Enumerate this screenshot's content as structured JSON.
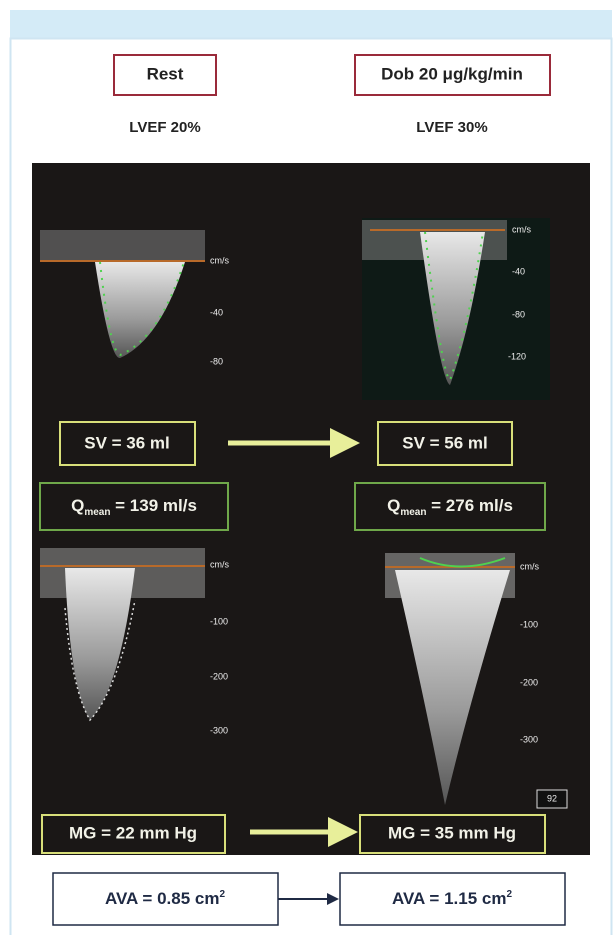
{
  "header": {
    "rest": "Rest",
    "dob": "Dob 20 μg/kg/min",
    "lvef_rest": "LVEF 20%",
    "lvef_dob": "LVEF 30%"
  },
  "panels": {
    "top_left_axis": [
      "cm/s",
      "-40",
      "-80"
    ],
    "top_right_axis": [
      "cm/s",
      "-40",
      "-80",
      "-120"
    ],
    "bottom_left_axis": [
      "cm/s",
      "-100",
      "-200",
      "-300"
    ],
    "bottom_right_axis": [
      "cm/s",
      "-100",
      "-200",
      "-300"
    ],
    "frame_number": "92"
  },
  "sv": {
    "rest": "SV = 36 ml",
    "dob": "SV = 56 ml"
  },
  "qmean": {
    "rest": {
      "symbol": "Q",
      "sub": "mean",
      "text": " = 139 ml/s"
    },
    "dob": {
      "symbol": "Q",
      "sub": "mean",
      "text": " = 276 ml/s"
    }
  },
  "mg": {
    "rest": "MG = 22 mm Hg",
    "dob": "MG = 35 mm Hg"
  },
  "ava": {
    "rest": {
      "text": "AVA = 0.85 cm",
      "sup": "2"
    },
    "dob": {
      "text": "AVA = 1.15 cm",
      "sup": "2"
    }
  }
}
